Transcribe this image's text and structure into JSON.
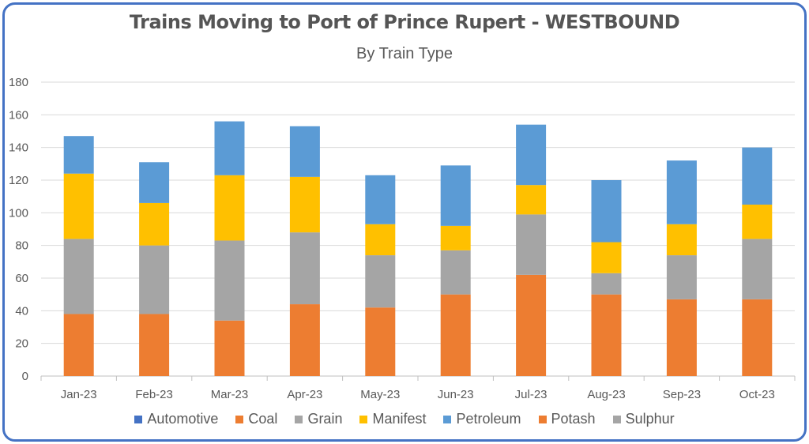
{
  "chart_data": {
    "type": "bar",
    "stacked": true,
    "title": "Trains Moving to Port of Prince Rupert - WESTBOUND",
    "subtitle": "By Train Type",
    "categories": [
      "Jan-23",
      "Feb-23",
      "Mar-23",
      "Apr-23",
      "May-23",
      "Jun-23",
      "Jul-23",
      "Aug-23",
      "Sep-23",
      "Oct-23"
    ],
    "ylim": [
      0,
      180
    ],
    "yticks": [
      0,
      20,
      40,
      60,
      80,
      100,
      120,
      140,
      160,
      180
    ],
    "grid": true,
    "legend_position": "bottom",
    "series": [
      {
        "name": "Automotive",
        "color": "#4472c4",
        "values": [
          0,
          0,
          0,
          0,
          0,
          0,
          0,
          0,
          0,
          0
        ]
      },
      {
        "name": "Coal",
        "color": "#ed7d31",
        "values": [
          38,
          38,
          34,
          44,
          42,
          50,
          62,
          50,
          47,
          47
        ]
      },
      {
        "name": "Grain",
        "color": "#a5a5a5",
        "values": [
          46,
          42,
          49,
          44,
          32,
          27,
          37,
          13,
          27,
          37
        ]
      },
      {
        "name": "Manifest",
        "color": "#ffc000",
        "values": [
          40,
          26,
          40,
          34,
          19,
          15,
          18,
          19,
          19,
          21
        ]
      },
      {
        "name": "Petroleum",
        "color": "#5b9bd5",
        "values": [
          23,
          25,
          33,
          31,
          30,
          37,
          37,
          38,
          39,
          35
        ]
      },
      {
        "name": "Potash",
        "color": "#ed7d31",
        "values": [
          0,
          0,
          0,
          0,
          0,
          0,
          0,
          0,
          0,
          0
        ]
      },
      {
        "name": "Sulphur",
        "color": "#a5a5a5",
        "values": [
          0,
          0,
          0,
          0,
          0,
          0,
          0,
          0,
          0,
          0
        ]
      }
    ]
  }
}
